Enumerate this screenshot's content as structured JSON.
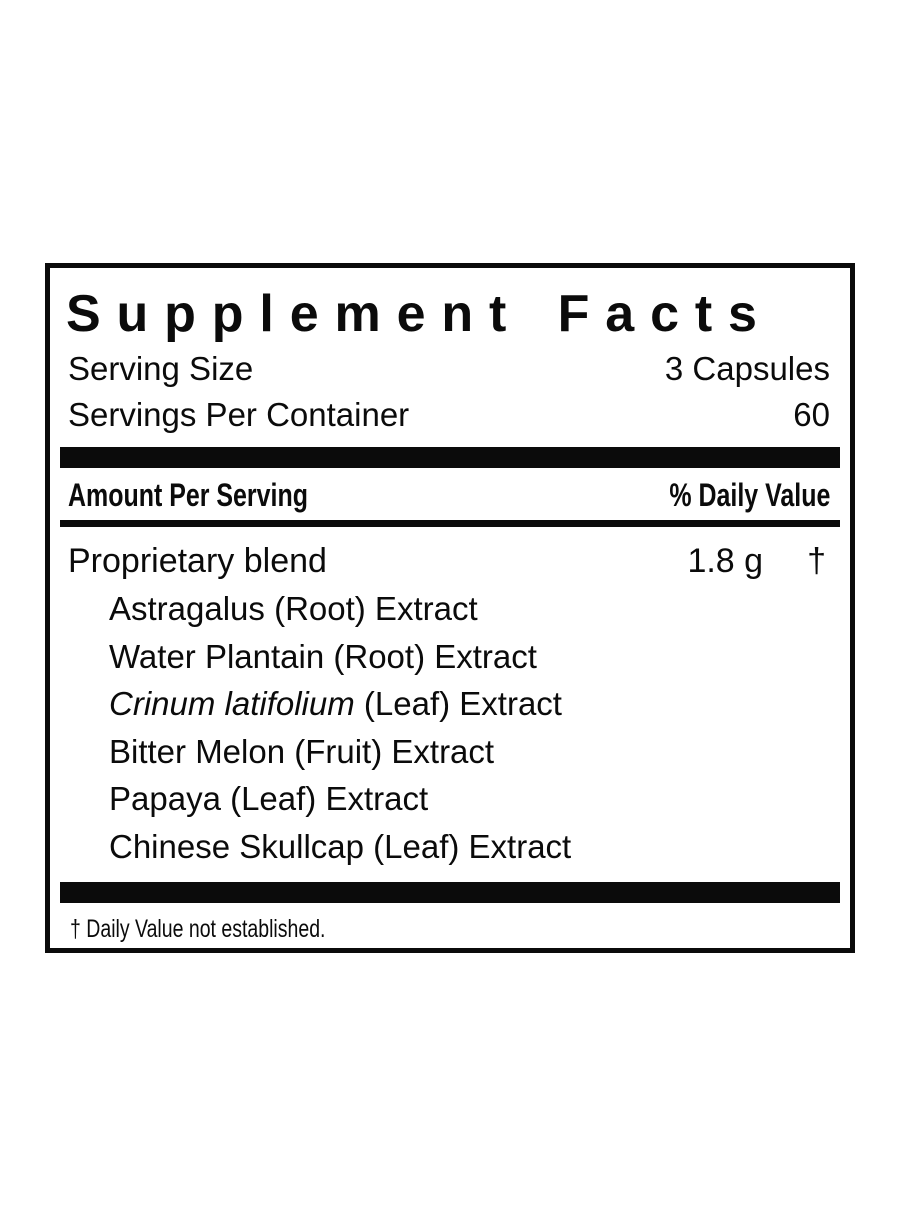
{
  "label": {
    "title": "Supplement Facts",
    "serving_size": {
      "label": "Serving Size",
      "value": "3 Capsules"
    },
    "servings_per_container": {
      "label": "Servings Per Container",
      "value": "60"
    },
    "columns": {
      "left": "Amount Per Serving",
      "right": "% Daily Value"
    },
    "blend": {
      "name": "Proprietary blend",
      "amount": "1.8 g",
      "daily_value_symbol": "†"
    },
    "ingredients": [
      {
        "italic": "",
        "text": "Astragalus (Root) Extract"
      },
      {
        "italic": "",
        "text": "Water Plantain (Root) Extract"
      },
      {
        "italic": "Crinum latifolium",
        "text": " (Leaf) Extract"
      },
      {
        "italic": "",
        "text": "Bitter Melon (Fruit) Extract"
      },
      {
        "italic": "",
        "text": "Papaya (Leaf) Extract"
      },
      {
        "italic": "",
        "text": "Chinese Skullcap (Leaf) Extract"
      }
    ],
    "footnote": "† Daily Value not established.",
    "colors": {
      "ink": "#0b0b0b",
      "background": "#ffffff"
    }
  }
}
